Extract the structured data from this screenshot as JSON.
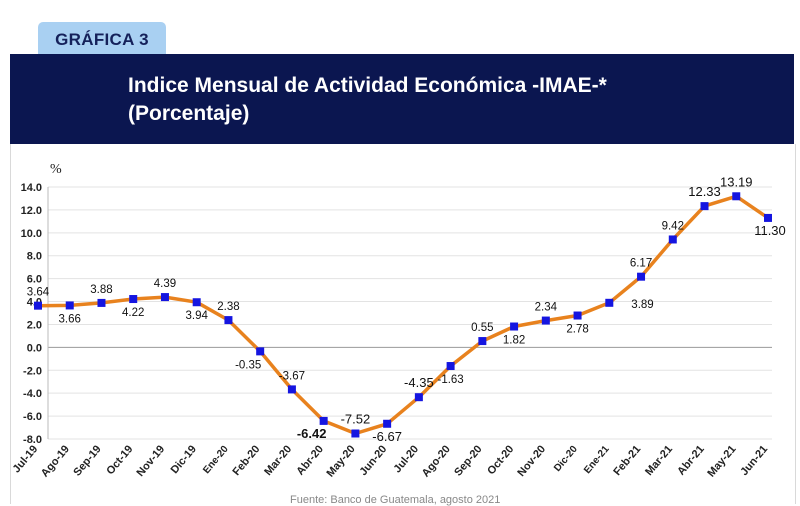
{
  "badge": "GRÁFICA 3",
  "title_line1": "Indice Mensual de Actividad Económica -IMAE-*",
  "title_line2": "(Porcentaje)",
  "footnote": "Fuente: Banco de Guatemala, agosto 2021",
  "chart_data": {
    "type": "line",
    "title": "Indice Mensual de Actividad Económica -IMAE-* (Porcentaje)",
    "ylabel": "%",
    "xlabel": "",
    "ylim": [
      -8.0,
      14.0
    ],
    "yticks": [
      "14.0",
      "12.0",
      "10.0",
      "8.0",
      "6.0",
      "4.0",
      "2.0",
      "0.0",
      "-2.0",
      "-4.0",
      "-6.0",
      "-8.0"
    ],
    "grid": true,
    "categories": [
      "Jul-19",
      "Ago-19",
      "Sep-19",
      "Oct-19",
      "Nov-19",
      "Dic-19",
      "Ene-20",
      "Feb-20",
      "Mar-20",
      "Abr-20",
      "May-20",
      "Jun-20",
      "Jul-20",
      "Ago-20",
      "Sep-20",
      "Oct-20",
      "Nov-20",
      "Dic-20",
      "Ene-21",
      "Feb-21",
      "Mar-21",
      "Abr-21",
      "May-21",
      "Jun-21"
    ],
    "values": [
      3.64,
      3.66,
      3.88,
      4.22,
      4.39,
      3.94,
      2.38,
      -0.35,
      -3.67,
      -6.42,
      -7.52,
      -6.67,
      -4.35,
      -1.63,
      0.55,
      1.82,
      2.34,
      2.78,
      3.89,
      6.17,
      9.42,
      12.33,
      13.19,
      11.3
    ],
    "labels": [
      "3.64",
      "3.66",
      "3.88",
      "4.22",
      "4.39",
      "3.94",
      "2.38",
      "-0.35",
      "-3.67",
      "-6.42",
      "-7.52",
      "-6.67",
      "-4.35",
      "-1.63",
      "0.55",
      "1.82",
      "2.34",
      "2.78",
      "3.89",
      "6.17",
      "9.42",
      "12.33",
      "13.19",
      "11.30"
    ],
    "line_color": "#e8821e",
    "marker_color": "#1515e0"
  }
}
